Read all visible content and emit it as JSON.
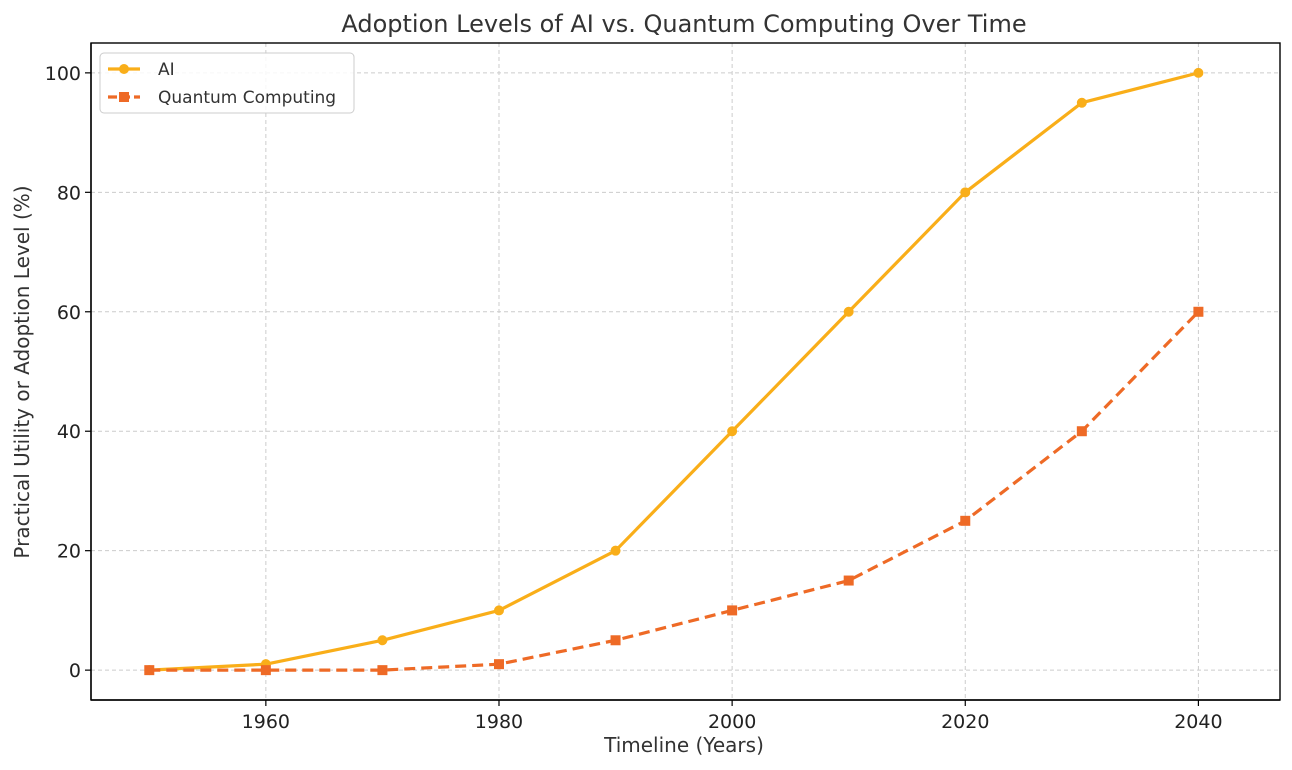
{
  "chart_data": {
    "type": "line",
    "title": "Adoption Levels of AI vs. Quantum Computing Over Time",
    "xlabel": "Timeline (Years)",
    "ylabel": "Practical Utility or Adoption Level (%)",
    "x": [
      1950,
      1960,
      1970,
      1980,
      1990,
      2000,
      2010,
      2020,
      2030,
      2040
    ],
    "xlim": [
      1945,
      2047
    ],
    "ylim": [
      -5,
      105
    ],
    "xticks": [
      1960,
      1980,
      2000,
      2020,
      2040
    ],
    "yticks": [
      0,
      20,
      40,
      60,
      80,
      100
    ],
    "grid": true,
    "legend_position": "top-left",
    "series": [
      {
        "name": "AI",
        "values": [
          0,
          1,
          5,
          10,
          20,
          40,
          60,
          80,
          95,
          100
        ],
        "color": "#F9AE19",
        "line_style": "solid",
        "marker": "circle"
      },
      {
        "name": "Quantum Computing",
        "values": [
          0,
          0,
          0,
          1,
          5,
          10,
          15,
          25,
          40,
          60
        ],
        "color": "#EE6A26",
        "line_style": "dashed",
        "marker": "square"
      }
    ]
  }
}
